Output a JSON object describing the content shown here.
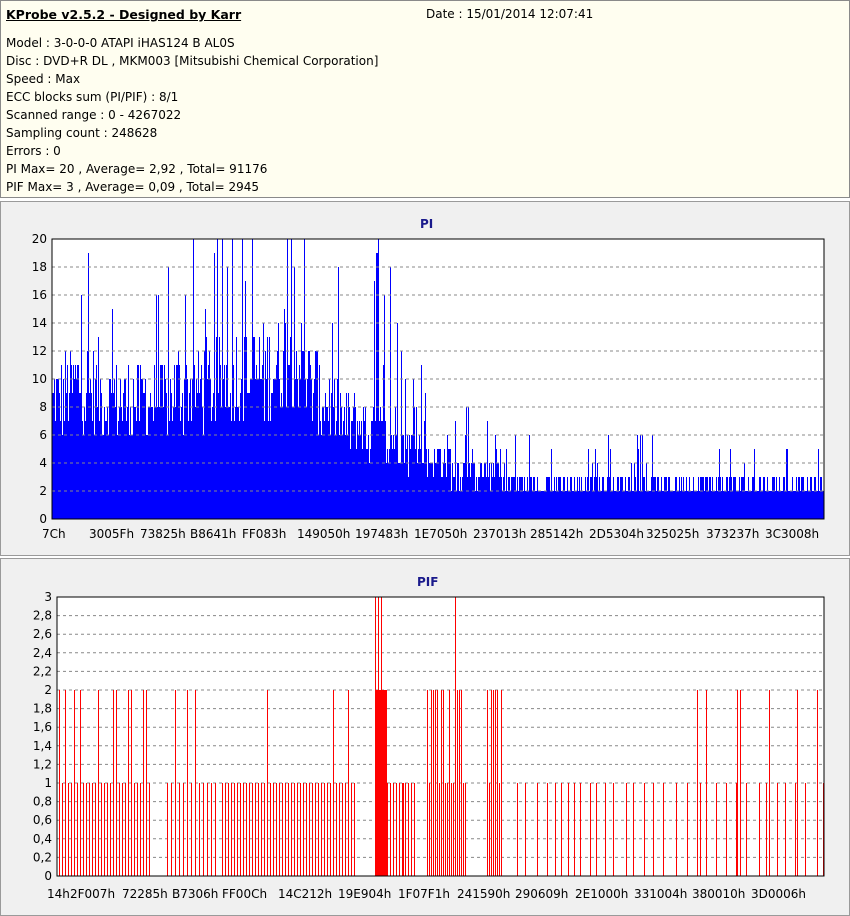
{
  "header": {
    "title": "KProbe v2.5.2 - Designed by Karr",
    "date": "Date : 15/01/2014 12:07:41",
    "lines": [
      "Model : 3-0-0-0 ATAPI   iHAS124   B      AL0S",
      "Disc : DVD+R DL , MKM003 [Mitsubishi Chemical Corporation]",
      "Speed : Max",
      "ECC blocks sum (PI/PIF) : 8/1",
      "Scanned range : 0 - 4267022",
      "Sampling count : 248628",
      "Errors : 0",
      "PI Max= 20 , Average= 2,92 , Total= 91176",
      "PIF Max= 3 , Average= 0,09 , Total= 2945"
    ]
  },
  "chart_data": [
    {
      "type": "bar",
      "title": "PI",
      "color": "#0000ff",
      "ylim": [
        0,
        20
      ],
      "yticks": [
        "0",
        "2",
        "4",
        "6",
        "8",
        "10",
        "12",
        "14",
        "16",
        "18",
        "20"
      ],
      "xticks": [
        "7Ch",
        "3005Fh",
        "73825h",
        "B8641h",
        "FF083h",
        "149050h",
        "197483h",
        "1E7050h",
        "237013h",
        "285142h",
        "2D5304h",
        "325025h",
        "373237h",
        "3C3008h"
      ],
      "grid": true,
      "profile": [
        10,
        11,
        11,
        11,
        10,
        10,
        10,
        10,
        10,
        10,
        11,
        11,
        11,
        11,
        12,
        12,
        12,
        12,
        13,
        14,
        13,
        11,
        10,
        9,
        8,
        8,
        7,
        7,
        7,
        6,
        6,
        5,
        5,
        4,
        4,
        4,
        4,
        3,
        3,
        3,
        3,
        3,
        3,
        3,
        3,
        3,
        3,
        3,
        3,
        3,
        3,
        3,
        3,
        3,
        3,
        3,
        3,
        3,
        3,
        3,
        3,
        3,
        3,
        3
      ],
      "note": "PI error counts per sample; peaks reach 20"
    },
    {
      "type": "bar",
      "title": "PIF",
      "color": "#ff0000",
      "ylim": [
        0,
        3
      ],
      "yticks": [
        "0",
        "0,2",
        "0,4",
        "0,6",
        "0,8",
        "1",
        "1,2",
        "1,4",
        "1,6",
        "1,8",
        "2",
        "2,2",
        "2,4",
        "2,6",
        "2,8",
        "3"
      ],
      "xticks": [
        "14h",
        "2F007h",
        "72285h",
        "B7306h",
        "FF00Ch",
        "14C212h",
        "19E904h",
        "1F07F1h",
        "241590h",
        "290609h",
        "2E1000h",
        "331004h",
        "380010h",
        "3D0006h"
      ],
      "grid": true,
      "note": "PIF error counts per sample; max 3"
    }
  ]
}
